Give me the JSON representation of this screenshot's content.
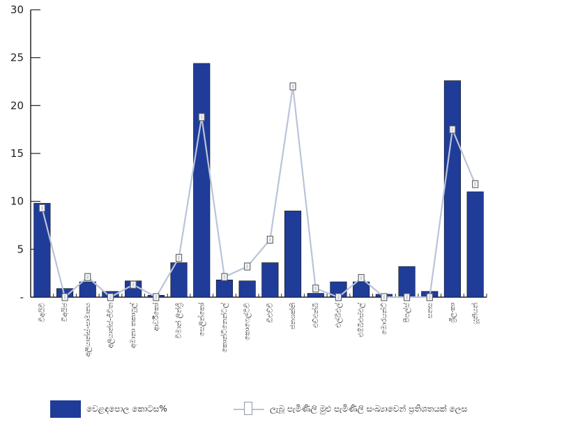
{
  "chart_data": {
    "type": "bar",
    "categories": [
      "වීඅයිවී",
      "වීඅයිජ",
      "අලියාන්ස්-සාමාන්‍ය",
      "අලියාන්ස්-ජීවිත",
      "අමානා තකාෆුල්",
      "ආර්වීකෝ",
      "විමාන් ලින්ජ්‍රි",
      "සෙලින්කෝ",
      "කොන්ටිනෙන්ටල්",
      "කොෆෙල්ටිචි",
      "ඩීඑච්චී",
      "ජනශක්ති",
      "එච්එන්බී",
      "එල්බීඑල්",
      "එම්බීඑස්එල්",
      "මොරයන්ට්",
      "පීපල්ස්",
      "සනස",
      "ශ්‍රීලංකා",
      "යූනියන්"
    ],
    "series": [
      {
        "name": "වෙළඳපොල කොටස%",
        "kind": "bar",
        "color": "#1f3c99",
        "values": [
          9.8,
          0.9,
          1.6,
          0.6,
          1.7,
          0.2,
          3.6,
          24.4,
          1.8,
          1.7,
          3.6,
          9.0,
          0.4,
          1.6,
          1.6,
          0.3,
          3.2,
          0.6,
          22.6,
          11.0
        ]
      },
      {
        "name": "ලැබූ පැමිණිලි මුළු පැමිණිලි සංඛ්‍යාවෙන් ප්‍රතිශතයක් ලෙස",
        "kind": "line",
        "color": "#b9c3da",
        "values": [
          9.3,
          0.0,
          2.1,
          0.0,
          1.3,
          0.0,
          4.1,
          18.8,
          2.1,
          3.2,
          6.0,
          22.0,
          0.9,
          0.0,
          2.0,
          0.0,
          0.0,
          0.0,
          17.5,
          11.8
        ]
      }
    ],
    "y_ticks": [
      "-",
      "5",
      "10",
      "15",
      "20",
      "25",
      "30"
    ],
    "ylim": [
      0,
      30
    ],
    "grid": false,
    "legend": "bottom"
  }
}
